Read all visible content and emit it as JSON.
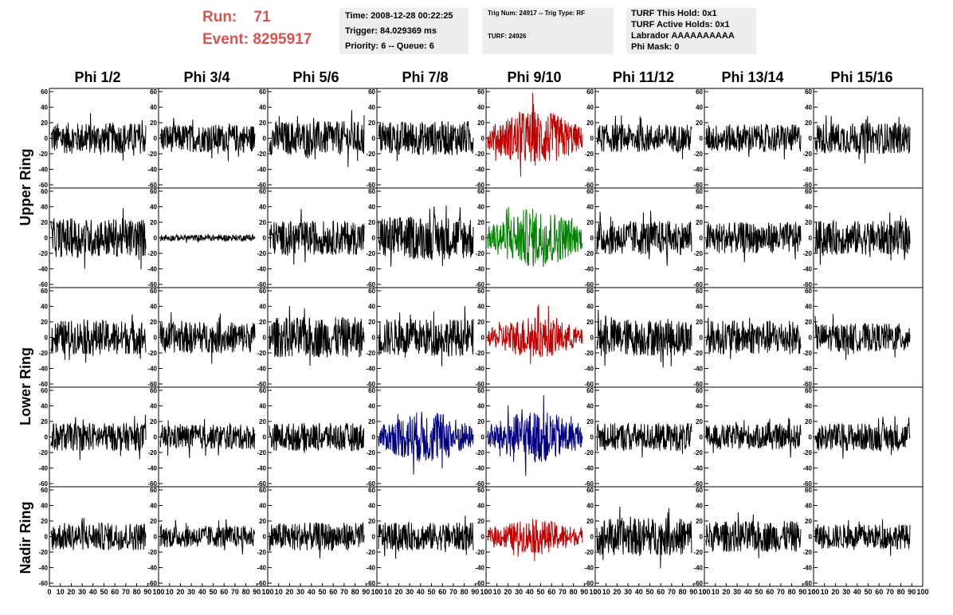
{
  "run_info": {
    "run_label": "Run:",
    "run_value": "71",
    "event_label": "Event:",
    "event_value": "8295917"
  },
  "header_box1": {
    "time": "Time: 2008-12-28 00:22:25",
    "trigger": "Trigger: 84.029369 ms",
    "priority": "Priority: 6 -- Queue: 6"
  },
  "header_box2": {
    "trig": "Trig Num: 24917 -- Trig Type: RF",
    "turf": "TURF: 24926"
  },
  "header_box3": {
    "this_hold": "TURF This Hold: 0x1",
    "active_holds": "TURF Active Holds: 0x1",
    "labrador": "Labrador AAAAAAAAAA",
    "phi_mask": "Phi Mask: 0"
  },
  "columns": [
    "Phi 1/2",
    "Phi 3/4",
    "Phi 5/6",
    "Phi 7/8",
    "Phi 9/10",
    "Phi 11/12",
    "Phi 13/14",
    "Phi 15/16"
  ],
  "ring_labels": {
    "upper": "Upper Ring",
    "lower": "Lower Ring",
    "nadir": "Nadir Ring"
  },
  "colors": {
    "run_info": "#d9534f",
    "default_trace": "#000000",
    "red": "#c00000",
    "green": "#008000",
    "blue": "#000080",
    "info_box_bg": "#eeeeee"
  },
  "chart_data": {
    "type": "line",
    "description_rows": 5,
    "description_cols": 8,
    "ylim": [
      -60,
      60
    ],
    "xlim": [
      0,
      100
    ],
    "y_ticks": [
      "60",
      "40",
      "20",
      "0",
      "-20",
      "-40",
      "-60"
    ],
    "x_ticks": [
      "0",
      "10",
      "20",
      "30",
      "40",
      "50",
      "60",
      "70",
      "80",
      "90",
      "100"
    ],
    "panel_colors": [
      [
        "#000000",
        "#000000",
        "#000000",
        "#000000",
        "#c00000",
        "#000000",
        "#000000",
        "#000000"
      ],
      [
        "#000000",
        "#000000",
        "#000000",
        "#000000",
        "#008000",
        "#000000",
        "#000000",
        "#000000"
      ],
      [
        "#000000",
        "#000000",
        "#000000",
        "#000000",
        "#c00000",
        "#000000",
        "#000000",
        "#000000"
      ],
      [
        "#000000",
        "#000000",
        "#000000",
        "#000080",
        "#000080",
        "#000000",
        "#000000",
        "#000000"
      ],
      [
        "#000000",
        "#000000",
        "#000000",
        "#000000",
        "#c00000",
        "#000000",
        "#000000",
        "#000000"
      ]
    ],
    "panel_amplitudes": [
      [
        20,
        18,
        22,
        22,
        30,
        18,
        18,
        20
      ],
      [
        25,
        4,
        22,
        28,
        32,
        22,
        20,
        22
      ],
      [
        22,
        20,
        26,
        24,
        22,
        24,
        22,
        18
      ],
      [
        18,
        16,
        18,
        28,
        28,
        18,
        16,
        18
      ],
      [
        18,
        14,
        18,
        18,
        18,
        24,
        20,
        16
      ]
    ]
  }
}
